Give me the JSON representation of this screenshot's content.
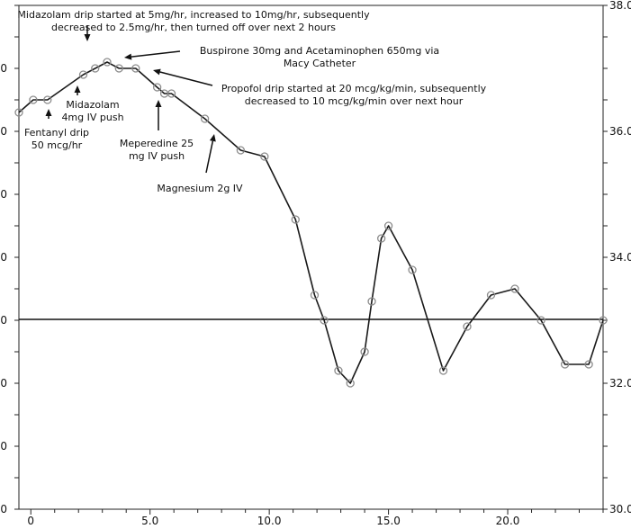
{
  "chart_data": {
    "type": "line",
    "xlim": [
      -0.5,
      24
    ],
    "y_left_lim": [
      30.0,
      38.0
    ],
    "y_right_lim": [
      30.0,
      38.0
    ],
    "x_tick_labels": [
      "0",
      "5.0",
      "10.0",
      "15.0",
      "20.0"
    ],
    "x_tick_values": [
      0,
      5,
      10,
      15,
      20
    ],
    "y_left_tick_labels": [
      "0",
      "0",
      "0",
      "0",
      "0",
      "0",
      "0",
      "0"
    ],
    "y_left_tick_values": [
      37.0,
      36.0,
      35.0,
      34.0,
      33.0,
      32.0,
      31.0,
      30.0
    ],
    "y_right_tick_labels": [
      "38.0",
      "36.0",
      "34.0",
      "32.0",
      "30.0"
    ],
    "y_right_tick_values": [
      38.0,
      36.0,
      34.0,
      32.0,
      30.0
    ],
    "reference_line_y": 33.0,
    "grid": false,
    "series": [
      {
        "x": [
          -0.5,
          0.1,
          0.7,
          2.2,
          2.7,
          3.2,
          3.7,
          4.4,
          5.3,
          5.6,
          5.9,
          7.3,
          8.8,
          9.8,
          11.1,
          11.9,
          12.3,
          12.9,
          13.4,
          14.0,
          14.3,
          14.7,
          15.0,
          16.0,
          17.3,
          18.3,
          19.3,
          20.3,
          21.4,
          22.4,
          23.4,
          24.0
        ],
        "y": [
          36.3,
          36.5,
          36.5,
          36.9,
          37.0,
          37.1,
          37.0,
          37.0,
          36.7,
          36.6,
          36.6,
          36.2,
          35.7,
          35.6,
          34.6,
          33.4,
          33.0,
          32.2,
          32.0,
          32.5,
          33.3,
          34.3,
          34.5,
          33.8,
          32.2,
          32.9,
          33.4,
          33.5,
          33.0,
          32.3,
          32.3,
          33.0
        ]
      }
    ],
    "annotations": [
      {
        "lines": [
          "Midazolam drip started at 5mg/hr, increased to 10mg/hr, subsequently",
          "decreased to 2.5mg/hr, then turned off over next 2 hours"
        ]
      },
      {
        "lines": [
          "Buspirone 30mg and Acetaminophen 650mg via",
          "Macy Catheter"
        ]
      },
      {
        "lines": [
          "Propofol drip started at 20 mcg/kg/min, subsequently",
          "decreased to 10 mcg/kg/min over next hour"
        ]
      },
      {
        "lines": [
          "Midazolam",
          "4mg IV push"
        ]
      },
      {
        "lines": [
          "Fentanyl drip",
          "50 mcg/hr"
        ]
      },
      {
        "lines": [
          "Meperedine 25",
          "mg IV push"
        ]
      },
      {
        "lines": [
          "Magnesium 2g IV"
        ]
      }
    ]
  }
}
